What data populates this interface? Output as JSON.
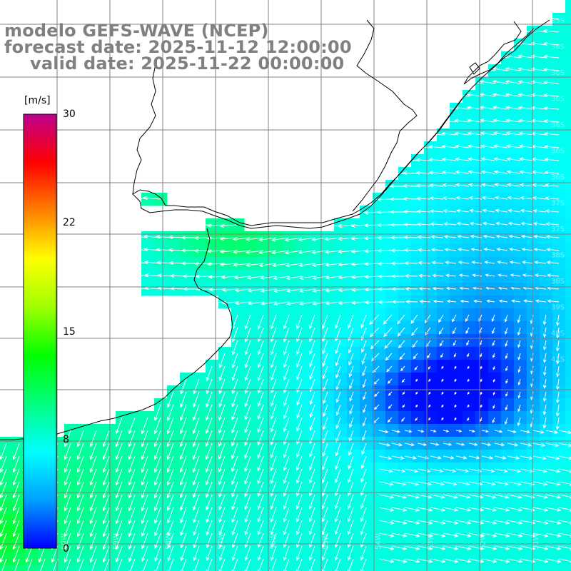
{
  "title": {
    "model": "modelo GEFS-WAVE (NCEP)",
    "forecast": "forecast date: 2025-11-12 12:00:00",
    "valid": "valid date: 2025-11-22 00:00:00"
  },
  "colorbar": {
    "unit": "[m/s]",
    "min": 0,
    "max": 30,
    "ticks": [
      {
        "value": 30,
        "label": "30"
      },
      {
        "value": 22,
        "label": "22"
      },
      {
        "value": 15,
        "label": "15"
      },
      {
        "value": 8,
        "label": "8"
      },
      {
        "value": 0,
        "label": "0"
      }
    ],
    "colors": [
      "#0000ff",
      "#00a0ff",
      "#00ffff",
      "#00ff80",
      "#00ff00",
      "#a0ff00",
      "#ffff00",
      "#ff8000",
      "#ff0000",
      "#c00090"
    ]
  },
  "grid": {
    "lat_labels": [
      "35S",
      "36S",
      "36S",
      "36S",
      "36S",
      "36S",
      "36S",
      "37S",
      "37S",
      "38S",
      "38S",
      "39S",
      "40S",
      "41S"
    ],
    "lon_labels": [
      "60W",
      "59W",
      "58W",
      "57W",
      "56W",
      "55W",
      "54W",
      "53W",
      "52W",
      "51W"
    ]
  },
  "colors": {
    "background": "#ffffff",
    "title": "#808080",
    "coastline": "#000000",
    "grid": "#808080",
    "arrow": "#ffffff"
  }
}
